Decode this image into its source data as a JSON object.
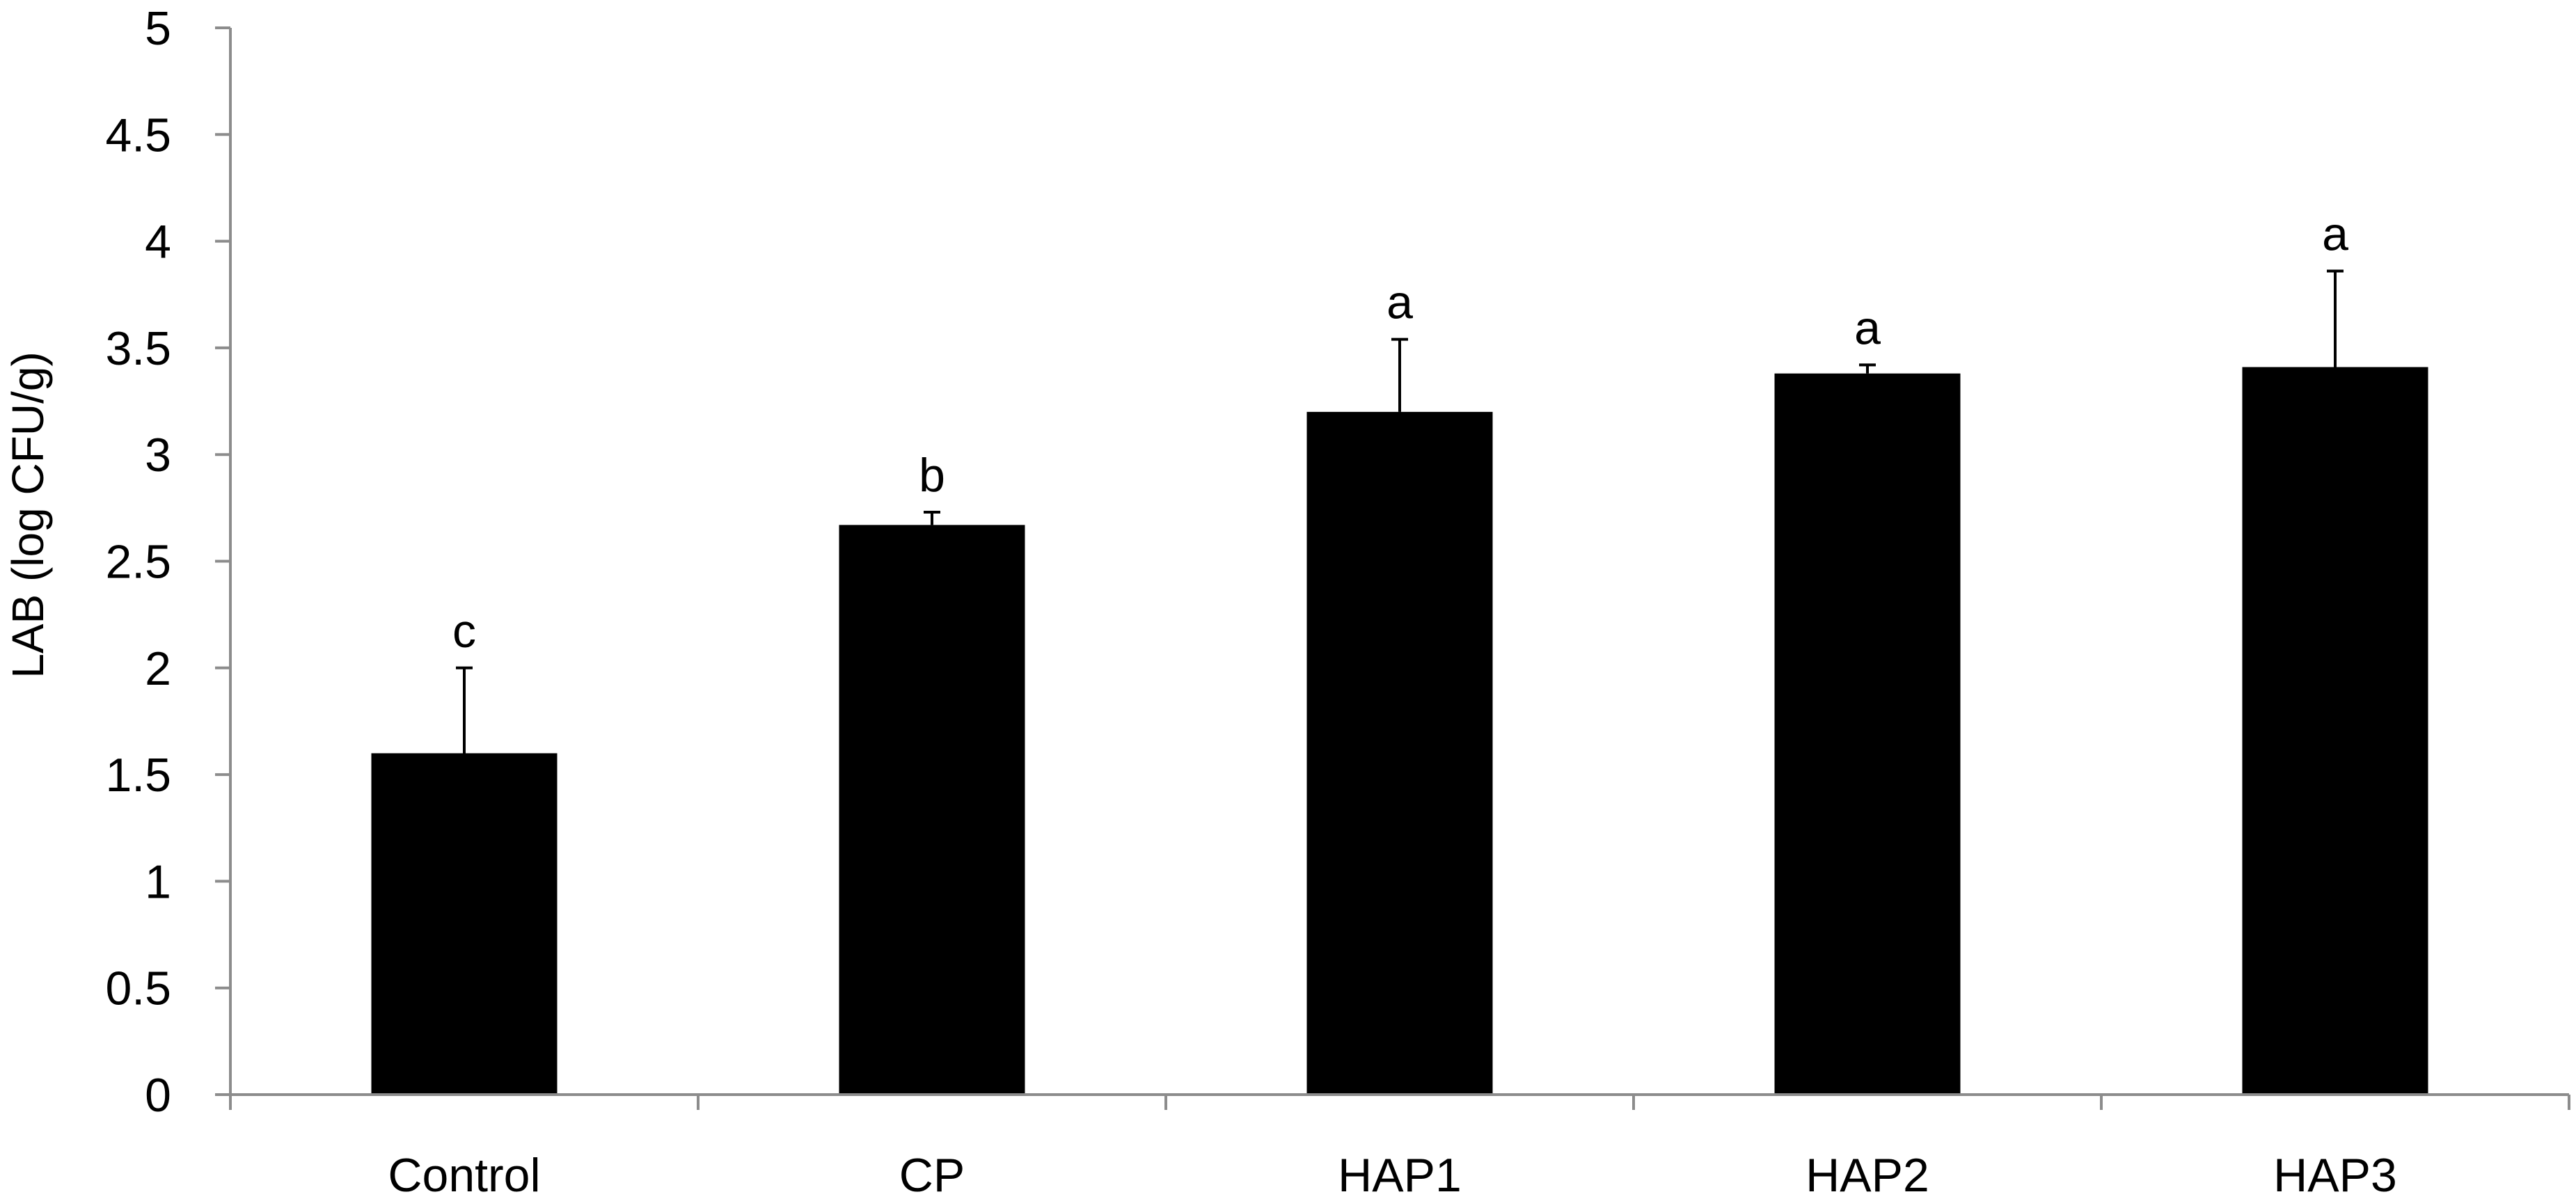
{
  "chart_data": {
    "type": "bar",
    "title": "",
    "xlabel": "",
    "ylabel": "LAB (log CFU/g)",
    "ylim": [
      0,
      5
    ],
    "yticks": [
      "0",
      "0.5",
      "1",
      "1.5",
      "2",
      "2.5",
      "3",
      "3.5",
      "4",
      "4.5",
      "5"
    ],
    "categories": [
      "Control",
      "CP",
      "HAP1",
      "HAP2",
      "HAP3"
    ],
    "values": [
      1.6,
      2.67,
      3.2,
      3.38,
      3.41
    ],
    "errors": [
      0.4,
      0.06,
      0.34,
      0.04,
      0.45
    ],
    "significance": [
      "c",
      "b",
      "a",
      "a",
      "a"
    ],
    "bar_color": "#000000",
    "axis_color": "#8c8c8c",
    "grid": false,
    "legend": "none"
  }
}
